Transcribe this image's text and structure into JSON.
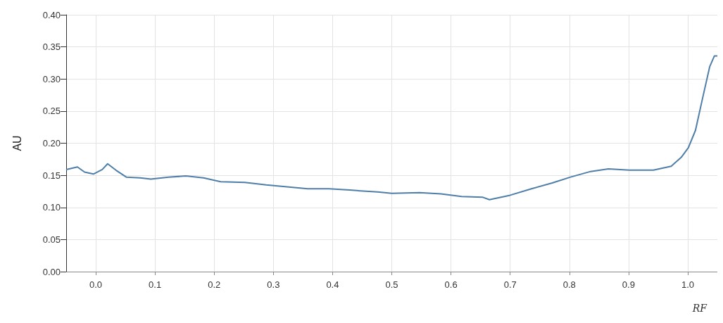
{
  "chart_data": {
    "type": "line",
    "xlabel": "RF",
    "ylabel": "AU",
    "grid": true,
    "marker": "none",
    "line_style": "solid",
    "xlim": [
      -0.05,
      1.05
    ],
    "xticks": [
      {
        "value": 0,
        "label": "0.0"
      },
      0.1,
      0.2,
      0.3,
      0.4,
      0.5,
      0.6,
      0.7,
      0.8,
      0.9,
      {
        "value": 1,
        "label": "1.0"
      }
    ],
    "ylim": [
      0,
      0.4
    ],
    "yticks": [
      {
        "value": 0,
        "label": "0.00"
      },
      0.05,
      {
        "value": 0.1,
        "label": "0.10"
      },
      0.15,
      {
        "value": 0.2,
        "label": "0.20"
      },
      0.25,
      {
        "value": 0.3,
        "label": "0.30"
      },
      0.35,
      {
        "value": 0.4,
        "label": "0.40"
      }
    ],
    "x": [
      -0.05,
      -0.031,
      -0.019,
      -0.004,
      0.011,
      0.02,
      0.034,
      0.052,
      0.075,
      0.093,
      0.123,
      0.152,
      0.182,
      0.211,
      0.252,
      0.288,
      0.323,
      0.358,
      0.394,
      0.429,
      0.476,
      0.5,
      0.547,
      0.583,
      0.618,
      0.653,
      0.665,
      0.7,
      0.736,
      0.771,
      0.801,
      0.836,
      0.866,
      0.901,
      0.942,
      0.972,
      0.989,
      1.001,
      1.013,
      1.025,
      1.037,
      1.045,
      1.05
    ],
    "series": [
      {
        "color": "#4f7ea8",
        "values": [
          0.159,
          0.163,
          0.155,
          0.152,
          0.159,
          0.168,
          0.158,
          0.147,
          0.146,
          0.144,
          0.147,
          0.149,
          0.146,
          0.14,
          0.139,
          0.135,
          0.132,
          0.129,
          0.129,
          0.127,
          0.124,
          0.122,
          0.123,
          0.121,
          0.117,
          0.116,
          0.112,
          0.119,
          0.129,
          0.138,
          0.147,
          0.156,
          0.16,
          0.158,
          0.158,
          0.164,
          0.178,
          0.193,
          0.22,
          0.27,
          0.319,
          0.336,
          0.336
        ]
      }
    ]
  }
}
